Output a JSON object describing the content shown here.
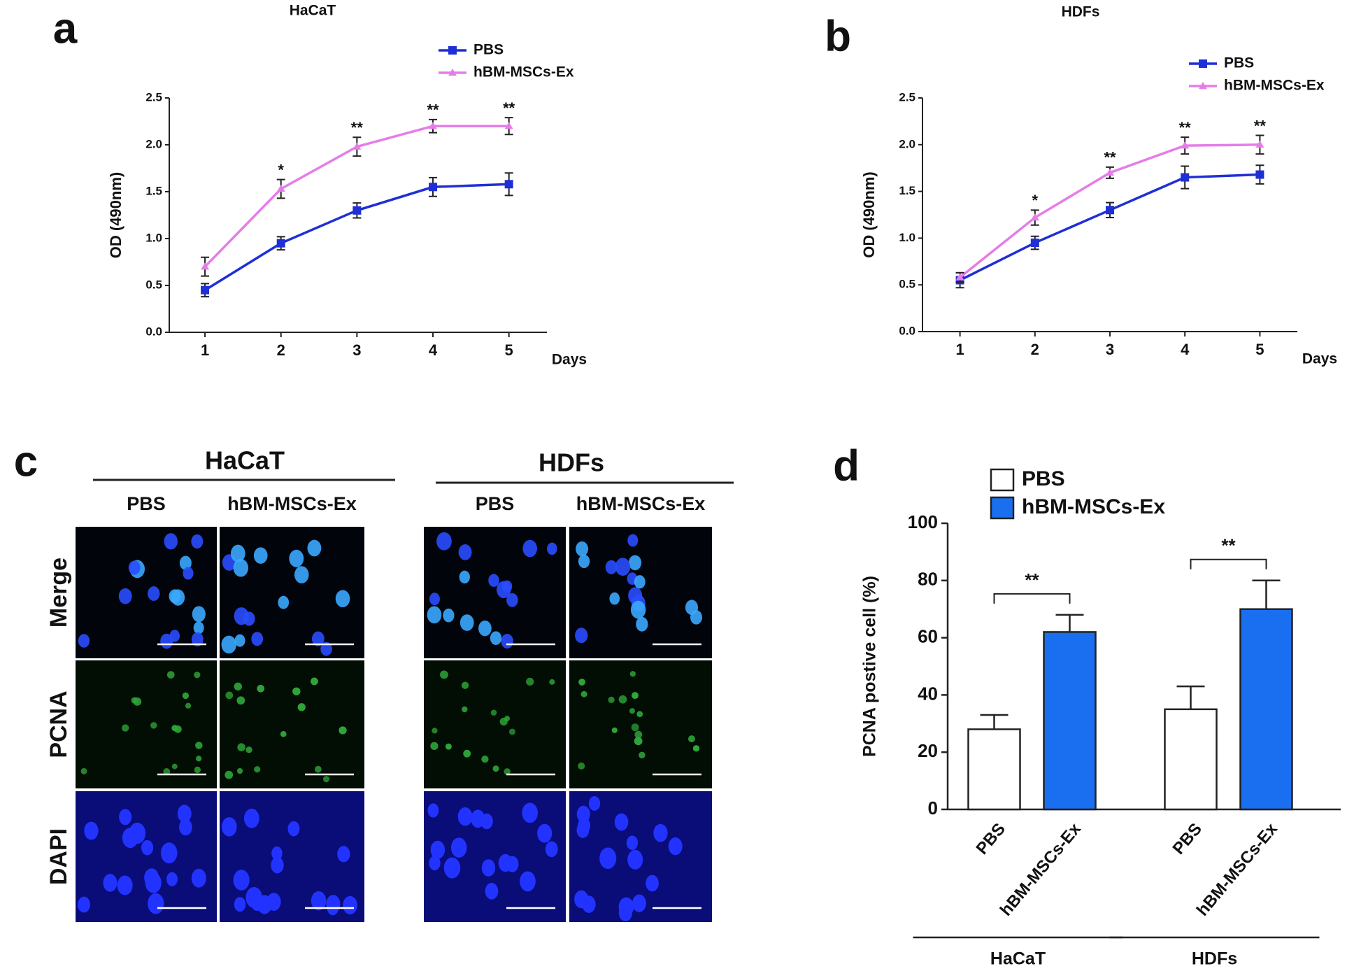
{
  "chart_data": [
    {
      "type": "line",
      "label": "a",
      "title": "HaCaT",
      "xlabel": "Days",
      "ylabel": "OD (490nm)",
      "x": [
        1,
        2,
        3,
        4,
        5
      ],
      "xlim": [
        0.53,
        5.5
      ],
      "xticks": [
        1,
        2,
        3,
        4,
        5
      ],
      "ylim": [
        0,
        2.5
      ],
      "yticks": [
        {
          "value": 0,
          "label": "0.0"
        },
        0.5,
        {
          "value": 1,
          "label": "1.0"
        },
        1.5,
        {
          "value": 2,
          "label": "2.0"
        },
        2.5
      ],
      "series": [
        {
          "name": "PBS",
          "color": "#1f2fd6",
          "marker": "square",
          "values": [
            0.45,
            0.95,
            1.3,
            1.55,
            1.58
          ],
          "errors": [
            0.07,
            0.07,
            0.08,
            0.1,
            0.12
          ]
        },
        {
          "name": "hBM-MSCs-Ex",
          "color": "#e57de8",
          "marker": "triangle",
          "values": [
            0.7,
            1.53,
            1.98,
            2.2,
            2.2
          ],
          "errors": [
            0.1,
            0.1,
            0.1,
            0.07,
            0.09
          ]
        }
      ],
      "annotations": [
        {
          "x": 2,
          "text": "*"
        },
        {
          "x": 3,
          "text": "**"
        },
        {
          "x": 4,
          "text": "**"
        },
        {
          "x": 5,
          "text": "**"
        }
      ]
    },
    {
      "type": "line",
      "label": "b",
      "title": "HDFs",
      "xlabel": "Days",
      "ylabel": "OD (490nm)",
      "x": [
        1,
        2,
        3,
        4,
        5
      ],
      "xlim": [
        0.5,
        5.5
      ],
      "xticks": [
        1,
        2,
        3,
        4,
        5
      ],
      "ylim": [
        0,
        2.5
      ],
      "yticks": [
        {
          "value": 0,
          "label": "0.0"
        },
        0.5,
        {
          "value": 1,
          "label": "1.0"
        },
        1.5,
        {
          "value": 2,
          "label": "2.0"
        },
        2.5
      ],
      "series": [
        {
          "name": "PBS",
          "color": "#1f2fd6",
          "marker": "square",
          "values": [
            0.55,
            0.95,
            1.3,
            1.65,
            1.68
          ],
          "errors": [
            0.08,
            0.07,
            0.08,
            0.12,
            0.1
          ]
        },
        {
          "name": "hBM-MSCs-Ex",
          "color": "#e57de8",
          "marker": "triangle",
          "values": [
            0.58,
            1.22,
            1.7,
            1.99,
            2.0
          ],
          "errors": [
            0.05,
            0.08,
            0.06,
            0.09,
            0.1
          ]
        }
      ],
      "annotations": [
        {
          "x": 2,
          "text": "*"
        },
        {
          "x": 3,
          "text": "**"
        },
        {
          "x": 4,
          "text": "**"
        },
        {
          "x": 5,
          "text": "**"
        }
      ]
    },
    {
      "type": "bar",
      "label": "d",
      "ylabel": "PCNA postive cell (%)",
      "categories": [
        "HaCaT",
        "HDFs"
      ],
      "ylim": [
        0,
        100
      ],
      "yticks": [
        0,
        20,
        40,
        60,
        80,
        100
      ],
      "series": [
        {
          "name": "PBS",
          "color": "#ffffff",
          "values": [
            28,
            35
          ],
          "errors": [
            5,
            8
          ]
        },
        {
          "name": "hBM-MSCs-Ex",
          "color": "#1a6ff0",
          "values": [
            62,
            70
          ],
          "errors": [
            6,
            10
          ]
        }
      ],
      "annotations": [
        {
          "category": 0,
          "text": "**"
        },
        {
          "category": 1,
          "text": "**"
        }
      ]
    }
  ],
  "panel_c": {
    "label": "c",
    "groups": [
      {
        "title": "HaCaT",
        "columns": [
          "PBS",
          "hBM-MSCs-Ex"
        ]
      },
      {
        "title": "HDFs",
        "columns": [
          "PBS",
          "hBM-MSCs-Ex"
        ]
      }
    ],
    "rows": [
      "Merge",
      "PCNA",
      "DAPI"
    ]
  }
}
